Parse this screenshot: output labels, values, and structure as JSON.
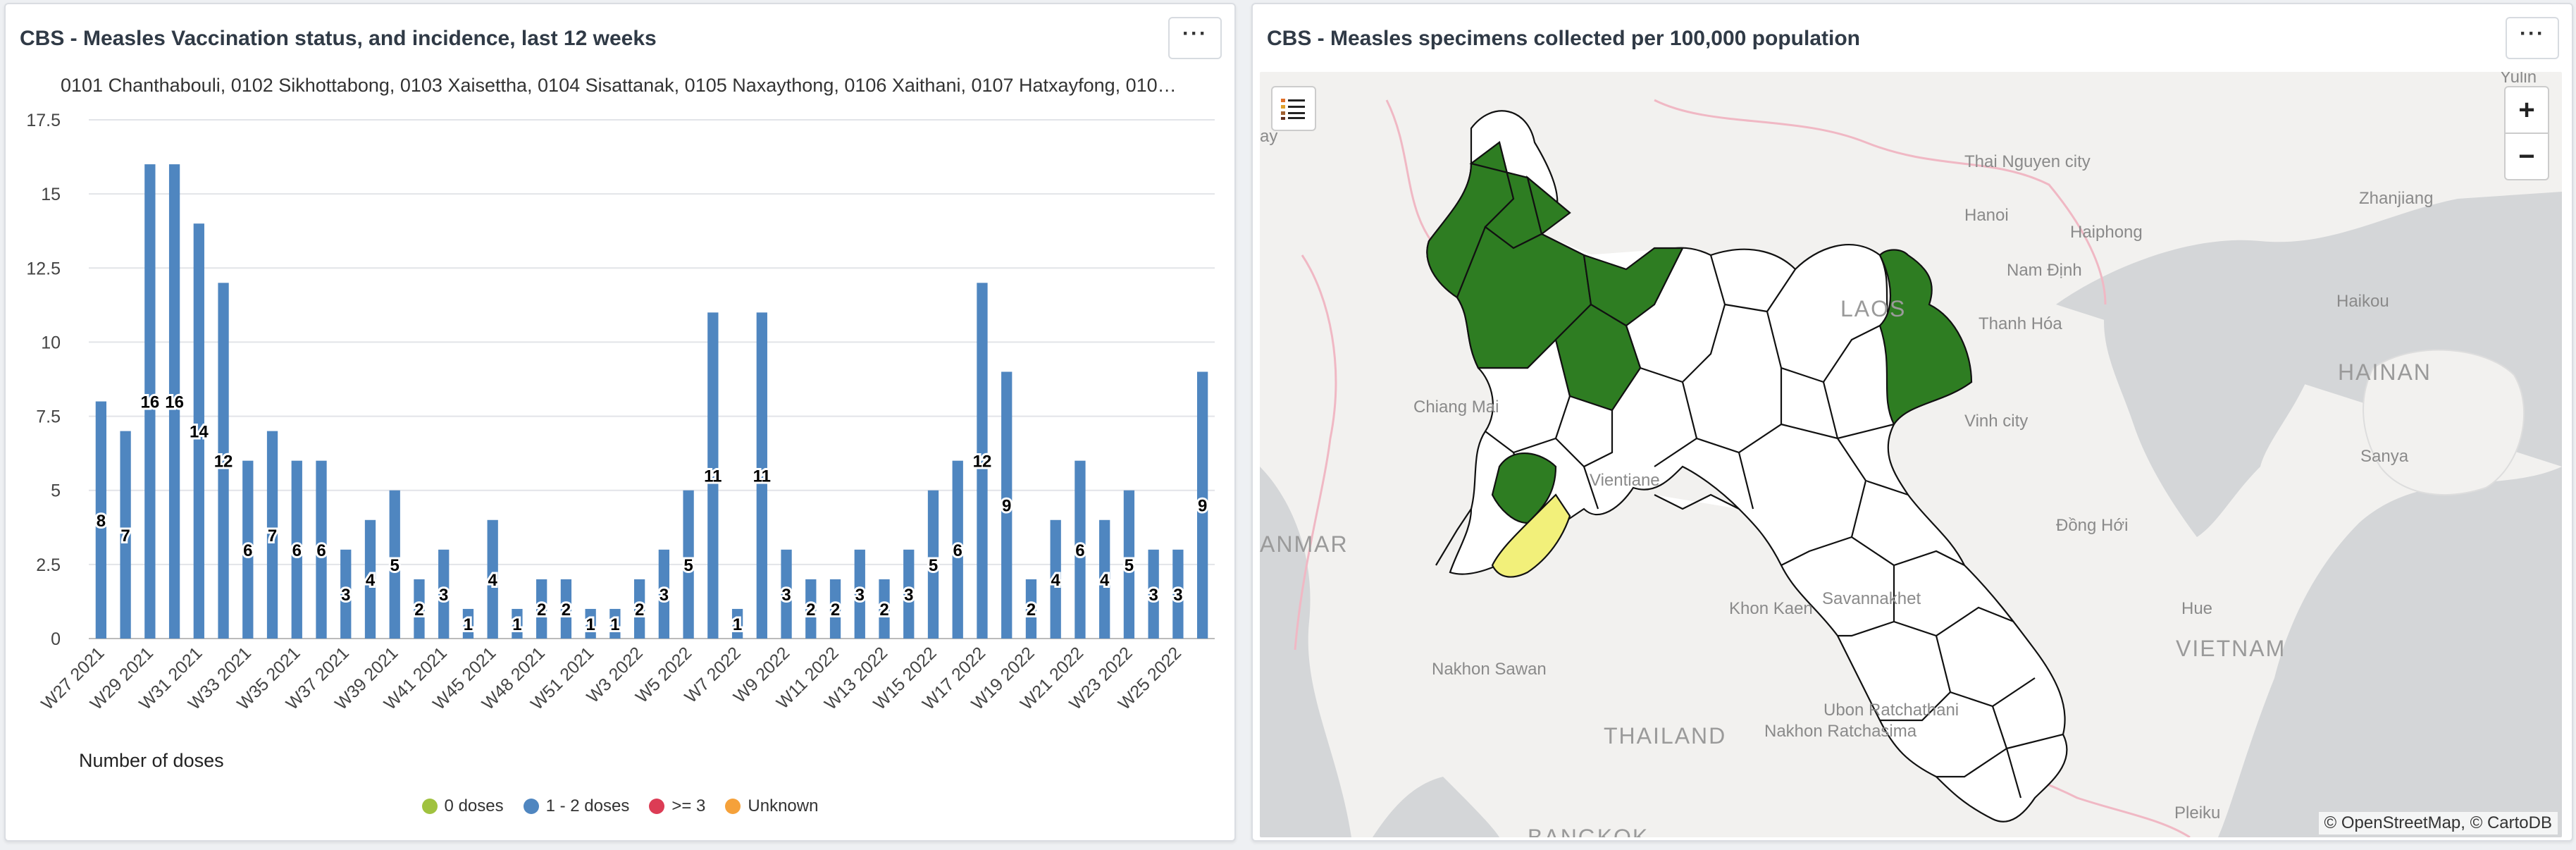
{
  "left_panel": {
    "title": "CBS - Measles Vaccination status, and incidence, last 12 weeks",
    "subtitle": "0101 Chanthabouli, 0102 Sikhottabong, 0103 Xaisettha, 0104 Sisattanak, 0105 Naxaythong, 0106 Xaithani, 0107 Hatxayfong, 010…",
    "more_label": "···",
    "legend": [
      {
        "label": "0 doses",
        "color": "#a0c23f"
      },
      {
        "label": "1 - 2 doses",
        "color": "#4f86c0"
      },
      {
        "label": ">= 3",
        "color": "#dc3c55"
      },
      {
        "label": "Unknown",
        "color": "#f5a13a"
      }
    ]
  },
  "chart_data": {
    "type": "bar",
    "xlabel": "Number of doses",
    "ylabel": "",
    "ylim": [
      0,
      17.5
    ],
    "yticks": [
      "0",
      "2.5",
      "5",
      "7.5",
      "10",
      "12.5",
      "15",
      "17.5"
    ],
    "bar_color": "#4f86c0",
    "categories": [
      "W27 2021",
      "W28 2021",
      "W29 2021",
      "W30 2021",
      "W31 2021",
      "W32 2021",
      "W33 2021",
      "W34 2021",
      "W35 2021",
      "W36 2021",
      "W37 2021",
      "W38 2021",
      "W39 2021",
      "W40 2021",
      "W41 2021",
      "W42 2021",
      "W45 2021",
      "W47 2021",
      "W48 2021",
      "W49 2021",
      "W51 2021",
      "W52 2021",
      "W3 2022",
      "W4 2022",
      "W5 2022",
      "W6 2022",
      "W7 2022",
      "W8 2022",
      "W9 2022",
      "W10 2022",
      "W11 2022",
      "W12 2022",
      "W13 2022",
      "W14 2022",
      "W15 2022",
      "W16 2022",
      "W17 2022",
      "W18 2022",
      "W19 2022",
      "W20 2022",
      "W21 2022",
      "W22 2022",
      "W23 2022",
      "W24 2022",
      "W25 2022",
      "W26 2022"
    ],
    "visible_tick_labels": [
      "W27 2021",
      "W29 2021",
      "W31 2021",
      "W33 2021",
      "W35 2021",
      "W37 2021",
      "W39 2021",
      "W41 2021",
      "W45 2021",
      "W48 2021",
      "W51 2021",
      "W3 2022",
      "W5 2022",
      "W7 2022",
      "W9 2022",
      "W11 2022",
      "W13 2022",
      "W15 2022",
      "W17 2022",
      "W19 2022",
      "W21 2022",
      "W23 2022",
      "W25 2022"
    ],
    "series": [
      {
        "name": "1 - 2 doses",
        "values": [
          8,
          7,
          16,
          16,
          14,
          12,
          6,
          7,
          6,
          6,
          3,
          4,
          5,
          2,
          3,
          1,
          4,
          1,
          2,
          2,
          1,
          1,
          2,
          3,
          5,
          11,
          1,
          11,
          3,
          2,
          2,
          3,
          2,
          3,
          5,
          6,
          12,
          9,
          2,
          4,
          6,
          4,
          5,
          3,
          3,
          9
        ]
      }
    ]
  },
  "right_panel": {
    "title": "CBS - Measles specimens collected per 100,000 population",
    "more_label": "···",
    "zoom_in": "+",
    "zoom_out": "−",
    "attribution": "© OpenStreetMap, © CartoDB",
    "labels": [
      {
        "text": "Yulin"
      },
      {
        "text": "Thai Nguyen city"
      },
      {
        "text": "Hanoi"
      },
      {
        "text": "Haiphong"
      },
      {
        "text": "Zhanjiang"
      },
      {
        "text": "Nam Định"
      },
      {
        "text": "Haikou"
      },
      {
        "text": "Thanh Hóa"
      },
      {
        "text": "HAINAN"
      },
      {
        "text": "Chiang Mai"
      },
      {
        "text": "Vinh city"
      },
      {
        "text": "Sanya"
      },
      {
        "text": "Vientiane"
      },
      {
        "text": "ANMAR"
      },
      {
        "text": "Đồng Hới"
      },
      {
        "text": "Khon Kaen"
      },
      {
        "text": "Savannakhet"
      },
      {
        "text": "Hue"
      },
      {
        "text": "VIETNAM"
      },
      {
        "text": "Nakhon Sawan"
      },
      {
        "text": "THAILAND"
      },
      {
        "text": "Ubon Ratchathani"
      },
      {
        "text": "Nakhon Ratchasima"
      },
      {
        "text": "Pleiku"
      },
      {
        "text": "BANGKOK"
      },
      {
        "text": "LAOS"
      },
      {
        "text": "ay"
      }
    ],
    "colors": {
      "high": "#2e7d22",
      "medium": "#f2f07a",
      "none": "#ffffff",
      "border": "#111111"
    }
  }
}
